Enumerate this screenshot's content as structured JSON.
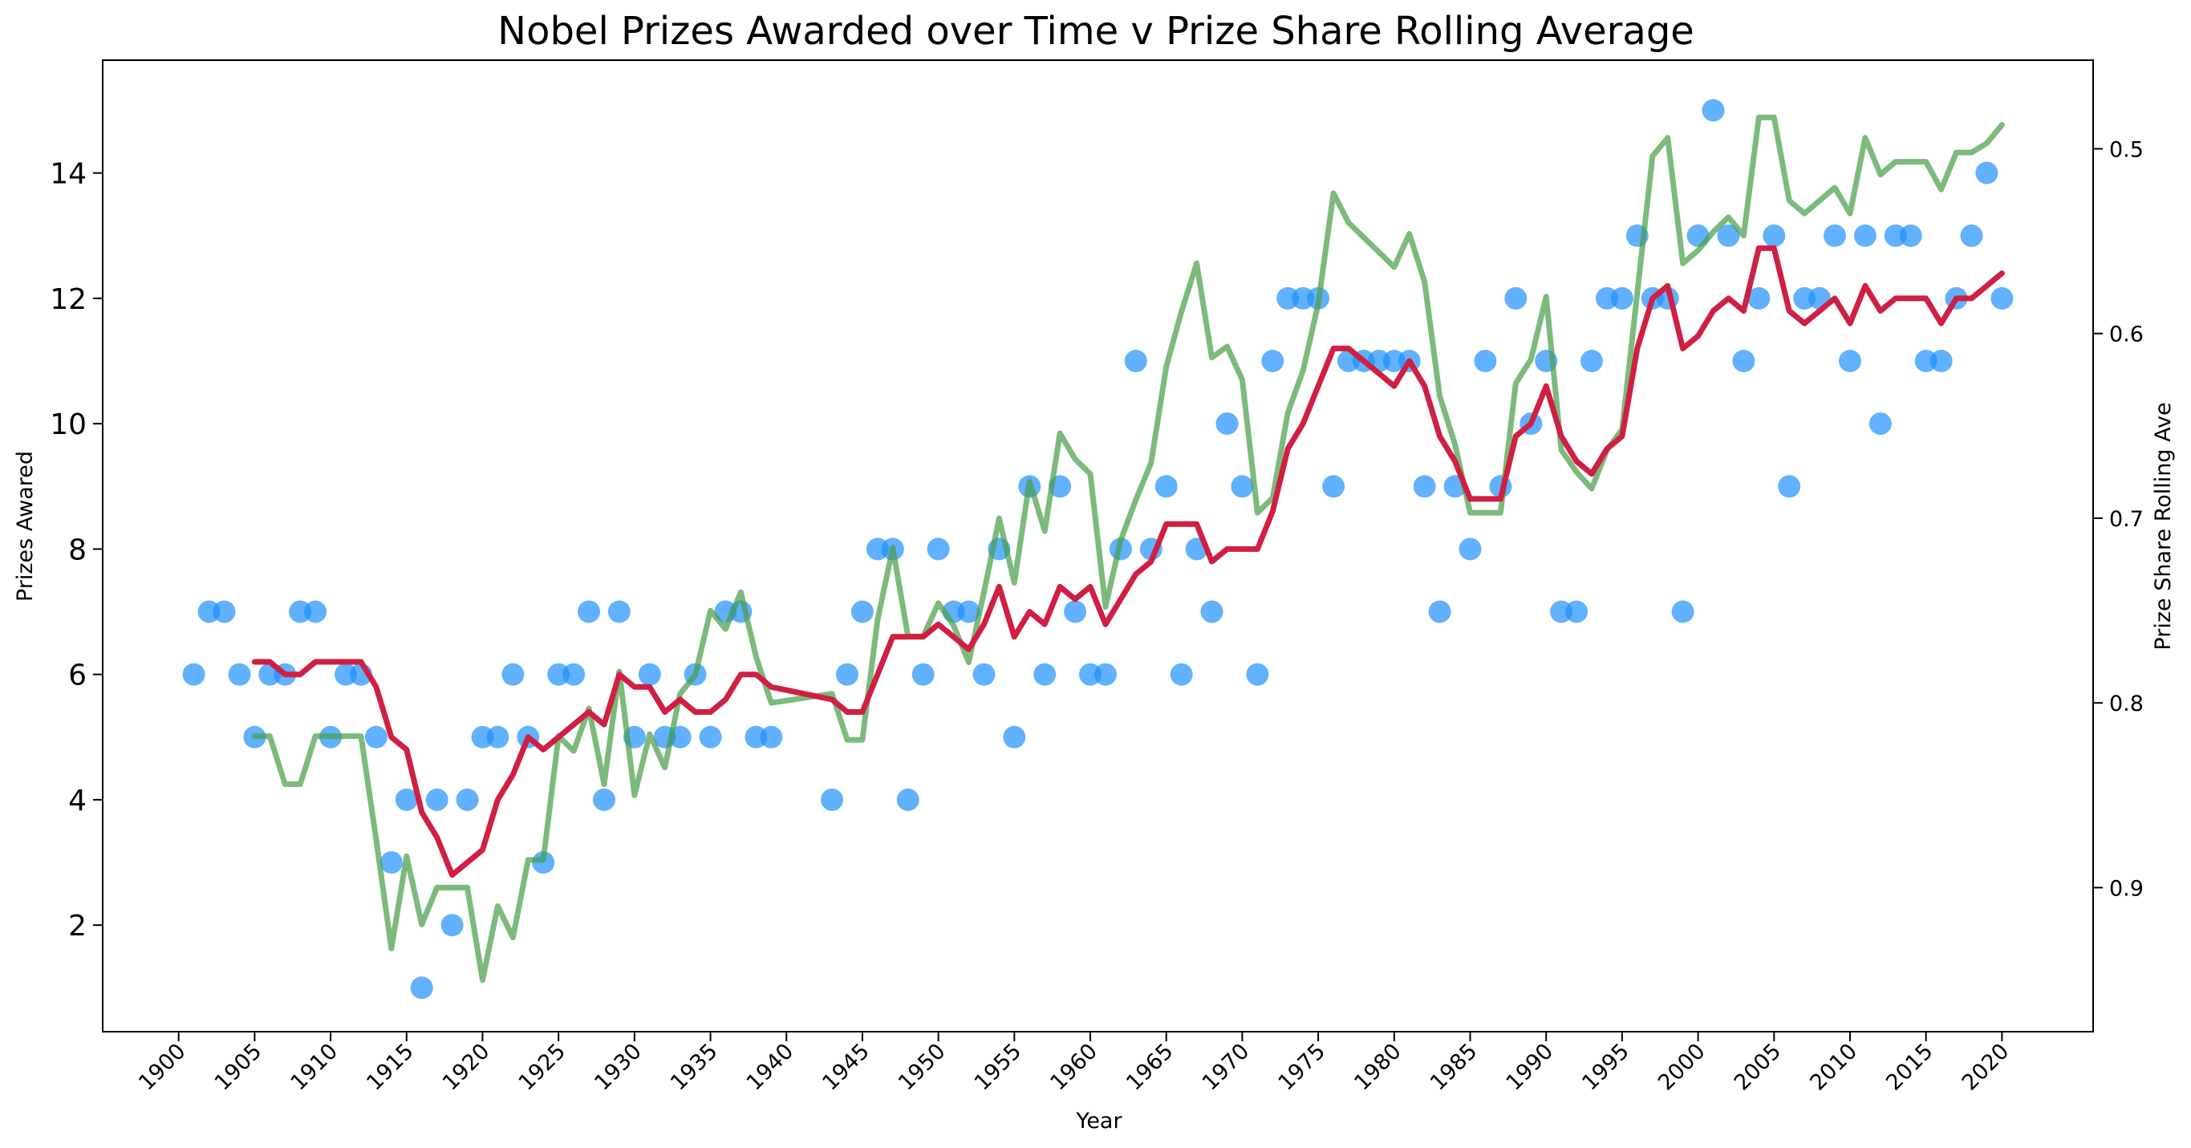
{
  "chart_data": {
    "type": "line",
    "title": "Nobel Prizes Awarded over Time v Prize Share Rolling Average",
    "xlabel": "Year",
    "ylabel": "Prizes Awared",
    "ylabel_right": "Prize Share Rolling Ave",
    "xlim": [
      1895,
      2026
    ],
    "ylim": [
      0.3,
      15.8
    ],
    "ylim_right": [
      0.978,
      0.452
    ],
    "right_axis_inverted": true,
    "x_ticks": [
      1900,
      1905,
      1910,
      1915,
      1920,
      1925,
      1930,
      1935,
      1940,
      1945,
      1950,
      1955,
      1960,
      1965,
      1970,
      1975,
      1980,
      1985,
      1990,
      1995,
      2000,
      2005,
      2010,
      2015,
      2020
    ],
    "y_ticks": [
      2,
      4,
      6,
      8,
      10,
      12,
      14
    ],
    "y_ticks_right": [
      0.5,
      0.6,
      0.7,
      0.8,
      0.9
    ],
    "grid": false,
    "colors": {
      "scatter": "#1E90FF",
      "prizes_rolling": "#CF1F43",
      "share_rolling": "#7BBD7B"
    },
    "series": [
      {
        "kind": "scatter",
        "axis": "left",
        "x": [
          1901,
          1902,
          1903,
          1904,
          1905,
          1906,
          1907,
          1908,
          1909,
          1910,
          1911,
          1912,
          1913,
          1914,
          1915,
          1916,
          1917,
          1918,
          1919,
          1920,
          1921,
          1922,
          1923,
          1924,
          1925,
          1926,
          1927,
          1928,
          1929,
          1930,
          1931,
          1932,
          1933,
          1934,
          1935,
          1936,
          1937,
          1938,
          1939,
          1943,
          1944,
          1945,
          1946,
          1947,
          1948,
          1949,
          1950,
          1951,
          1952,
          1953,
          1954,
          1955,
          1956,
          1957,
          1958,
          1959,
          1960,
          1961,
          1962,
          1963,
          1964,
          1965,
          1966,
          1967,
          1968,
          1969,
          1970,
          1971,
          1972,
          1973,
          1974,
          1975,
          1976,
          1977,
          1978,
          1979,
          1980,
          1981,
          1982,
          1983,
          1984,
          1985,
          1986,
          1987,
          1988,
          1989,
          1990,
          1991,
          1992,
          1993,
          1994,
          1995,
          1996,
          1997,
          1998,
          1999,
          2000,
          2001,
          2002,
          2003,
          2004,
          2005,
          2006,
          2007,
          2008,
          2009,
          2010,
          2011,
          2012,
          2013,
          2014,
          2015,
          2016,
          2017,
          2018,
          2019,
          2020
        ],
        "y": [
          6,
          7,
          7,
          6,
          5,
          6,
          6,
          7,
          7,
          5,
          6,
          6,
          5,
          3,
          4,
          1,
          4,
          2,
          4,
          5,
          5,
          6,
          5,
          3,
          6,
          6,
          7,
          4,
          7,
          5,
          6,
          5,
          5,
          6,
          5,
          7,
          7,
          5,
          5,
          4,
          6,
          7,
          8,
          8,
          4,
          6,
          8,
          7,
          7,
          6,
          8,
          5,
          9,
          6,
          9,
          7,
          6,
          6,
          8,
          11,
          8,
          9,
          6,
          8,
          7,
          10,
          9,
          6,
          11,
          12,
          12,
          12,
          9,
          11,
          11,
          11,
          11,
          11,
          9,
          7,
          9,
          8,
          11,
          9,
          12,
          10,
          11,
          7,
          7,
          11,
          12,
          12,
          13,
          12,
          12,
          7,
          13,
          15,
          13,
          11,
          12,
          13,
          9,
          12,
          12,
          13,
          11,
          13,
          10,
          13,
          13,
          11,
          11,
          12,
          13,
          14,
          12
        ]
      },
      {
        "kind": "line",
        "axis": "left",
        "x": [
          1905,
          1906,
          1907,
          1908,
          1909,
          1910,
          1911,
          1912,
          1913,
          1914,
          1915,
          1916,
          1917,
          1918,
          1919,
          1920,
          1921,
          1922,
          1923,
          1924,
          1925,
          1926,
          1927,
          1928,
          1929,
          1930,
          1931,
          1932,
          1933,
          1934,
          1935,
          1936,
          1937,
          1938,
          1939,
          1943,
          1944,
          1945,
          1946,
          1947,
          1948,
          1949,
          1950,
          1951,
          1952,
          1953,
          1954,
          1955,
          1956,
          1957,
          1958,
          1959,
          1960,
          1961,
          1962,
          1963,
          1964,
          1965,
          1966,
          1967,
          1968,
          1969,
          1970,
          1971,
          1972,
          1973,
          1974,
          1975,
          1976,
          1977,
          1978,
          1979,
          1980,
          1981,
          1982,
          1983,
          1984,
          1985,
          1986,
          1987,
          1988,
          1989,
          1990,
          1991,
          1992,
          1993,
          1994,
          1995,
          1996,
          1997,
          1998,
          1999,
          2000,
          2001,
          2002,
          2003,
          2004,
          2005,
          2006,
          2007,
          2008,
          2009,
          2010,
          2011,
          2012,
          2013,
          2014,
          2015,
          2016,
          2017,
          2018,
          2019,
          2020
        ],
        "y": [
          6.2,
          6.2,
          6.0,
          6.0,
          6.2,
          6.2,
          6.2,
          6.2,
          5.8,
          5.0,
          4.8,
          3.8,
          3.4,
          2.8,
          3.0,
          3.2,
          4.0,
          4.4,
          5.0,
          4.8,
          5.0,
          5.2,
          5.4,
          5.2,
          6.0,
          5.8,
          5.8,
          5.4,
          5.6,
          5.4,
          5.4,
          5.6,
          6.0,
          6.0,
          5.8,
          5.6,
          5.4,
          5.4,
          6.0,
          6.6,
          6.6,
          6.6,
          6.8,
          6.6,
          6.4,
          6.8,
          7.4,
          6.6,
          7.0,
          6.8,
          7.4,
          7.2,
          7.4,
          6.8,
          7.2,
          7.6,
          7.8,
          8.4,
          8.4,
          8.4,
          7.8,
          8.0,
          8.0,
          8.0,
          8.6,
          9.6,
          10.0,
          10.6,
          11.2,
          11.2,
          11.0,
          10.8,
          10.6,
          11.0,
          10.6,
          9.8,
          9.4,
          8.8,
          8.8,
          8.8,
          9.8,
          10.0,
          10.6,
          9.8,
          9.4,
          9.2,
          9.6,
          9.8,
          11.2,
          12.0,
          12.2,
          11.2,
          11.4,
          11.8,
          12.0,
          11.8,
          12.8,
          12.8,
          11.8,
          11.6,
          11.8,
          12.0,
          11.6,
          12.2,
          11.8,
          12.0,
          12.0,
          12.0,
          11.6,
          12.0,
          12.0,
          12.2,
          12.4
        ]
      },
      {
        "kind": "line",
        "axis": "right",
        "x": [
          1905,
          1906,
          1907,
          1908,
          1909,
          1910,
          1911,
          1912,
          1913,
          1914,
          1915,
          1916,
          1917,
          1918,
          1919,
          1920,
          1921,
          1922,
          1923,
          1924,
          1925,
          1926,
          1927,
          1928,
          1929,
          1930,
          1931,
          1932,
          1933,
          1934,
          1935,
          1936,
          1937,
          1938,
          1939,
          1943,
          1944,
          1945,
          1946,
          1947,
          1948,
          1949,
          1950,
          1951,
          1952,
          1953,
          1954,
          1955,
          1956,
          1957,
          1958,
          1959,
          1960,
          1961,
          1962,
          1963,
          1964,
          1965,
          1966,
          1967,
          1968,
          1969,
          1970,
          1971,
          1972,
          1973,
          1974,
          1975,
          1976,
          1977,
          1978,
          1979,
          1980,
          1981,
          1982,
          1983,
          1984,
          1985,
          1986,
          1987,
          1988,
          1989,
          1990,
          1991,
          1992,
          1993,
          1994,
          1995,
          1996,
          1997,
          1998,
          1999,
          2000,
          2001,
          2002,
          2003,
          2004,
          2005,
          2006,
          2007,
          2008,
          2009,
          2010,
          2011,
          2012,
          2013,
          2014,
          2015,
          2016,
          2017,
          2018,
          2019,
          2020
        ],
        "y": [
          0.818,
          0.818,
          0.844,
          0.844,
          0.818,
          0.818,
          0.818,
          0.818,
          0.874,
          0.933,
          0.883,
          0.92,
          0.9,
          0.9,
          0.9,
          0.95,
          0.91,
          0.927,
          0.885,
          0.885,
          0.818,
          0.826,
          0.803,
          0.844,
          0.783,
          0.85,
          0.817,
          0.835,
          0.795,
          0.785,
          0.75,
          0.76,
          0.74,
          0.775,
          0.8,
          0.795,
          0.82,
          0.82,
          0.755,
          0.716,
          0.764,
          0.764,
          0.746,
          0.758,
          0.778,
          0.74,
          0.7,
          0.735,
          0.68,
          0.707,
          0.654,
          0.668,
          0.676,
          0.748,
          0.712,
          0.69,
          0.67,
          0.618,
          0.588,
          0.562,
          0.613,
          0.607,
          0.625,
          0.697,
          0.689,
          0.643,
          0.62,
          0.584,
          0.524,
          0.54,
          0.548,
          0.556,
          0.564,
          0.546,
          0.572,
          0.634,
          0.66,
          0.697,
          0.697,
          0.697,
          0.627,
          0.614,
          0.58,
          0.663,
          0.675,
          0.684,
          0.663,
          0.652,
          0.578,
          0.504,
          0.494,
          0.562,
          0.555,
          0.545,
          0.537,
          0.547,
          0.483,
          0.483,
          0.528,
          0.535,
          0.528,
          0.521,
          0.535,
          0.494,
          0.514,
          0.507,
          0.507,
          0.507,
          0.522,
          0.502,
          0.502,
          0.497,
          0.487
        ]
      }
    ]
  }
}
